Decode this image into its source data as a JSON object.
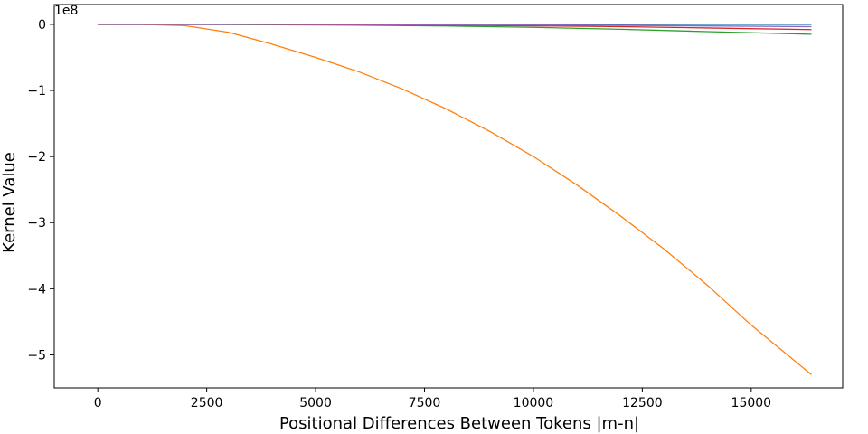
{
  "chart_data": {
    "type": "line",
    "xlabel": "Positional Differences Between Tokens |m-n|",
    "ylabel": "Kernel Value",
    "offset_text": "1e8",
    "xlim": [
      -1000,
      17100
    ],
    "ylim": [
      -5.5,
      0.3
    ],
    "xticks": [
      0,
      2500,
      5000,
      7500,
      10000,
      12500,
      15000
    ],
    "xtick_labels": [
      "0",
      "2500",
      "5000",
      "7500",
      "10000",
      "12500",
      "15000"
    ],
    "yticks": [
      0,
      -1,
      -2,
      -3,
      -4,
      -5
    ],
    "ytick_labels": [
      "0",
      "−1",
      "−2",
      "−3",
      "−4",
      "−5"
    ],
    "grid": false,
    "series": [
      {
        "color": "#1f77b4",
        "x": [
          0,
          2000,
          4000,
          6000,
          8000,
          10000,
          12000,
          14000,
          16384
        ],
        "y": [
          0,
          0,
          0,
          0,
          0,
          0,
          0,
          0,
          0
        ]
      },
      {
        "color": "#ff7f0e",
        "x": [
          0,
          1000,
          2000,
          3000,
          4000,
          5000,
          6000,
          7000,
          8000,
          9000,
          10000,
          11000,
          12000,
          13000,
          14000,
          15000,
          16384
        ],
        "y": [
          0,
          0,
          -0.02,
          -0.12,
          -0.3,
          -0.5,
          -0.72,
          -0.98,
          -1.28,
          -1.62,
          -2.0,
          -2.43,
          -2.9,
          -3.4,
          -3.95,
          -4.55,
          -5.3
        ]
      },
      {
        "color": "#2ca02c",
        "x": [
          0,
          2000,
          4000,
          6000,
          8000,
          10000,
          12000,
          14000,
          16384
        ],
        "y": [
          0,
          -0.001,
          -0.005,
          -0.012,
          -0.025,
          -0.045,
          -0.075,
          -0.11,
          -0.15
        ]
      },
      {
        "color": "#d62728",
        "x": [
          0,
          2000,
          4000,
          6000,
          8000,
          10000,
          12000,
          14000,
          16384
        ],
        "y": [
          0,
          0,
          -0.002,
          -0.006,
          -0.012,
          -0.022,
          -0.035,
          -0.055,
          -0.08
        ]
      },
      {
        "color": "#9467bd",
        "x": [
          0,
          2000,
          4000,
          6000,
          8000,
          10000,
          12000,
          14000,
          16384
        ],
        "y": [
          0,
          0,
          -0.001,
          -0.003,
          -0.006,
          -0.01,
          -0.016,
          -0.024,
          -0.035
        ]
      }
    ]
  }
}
